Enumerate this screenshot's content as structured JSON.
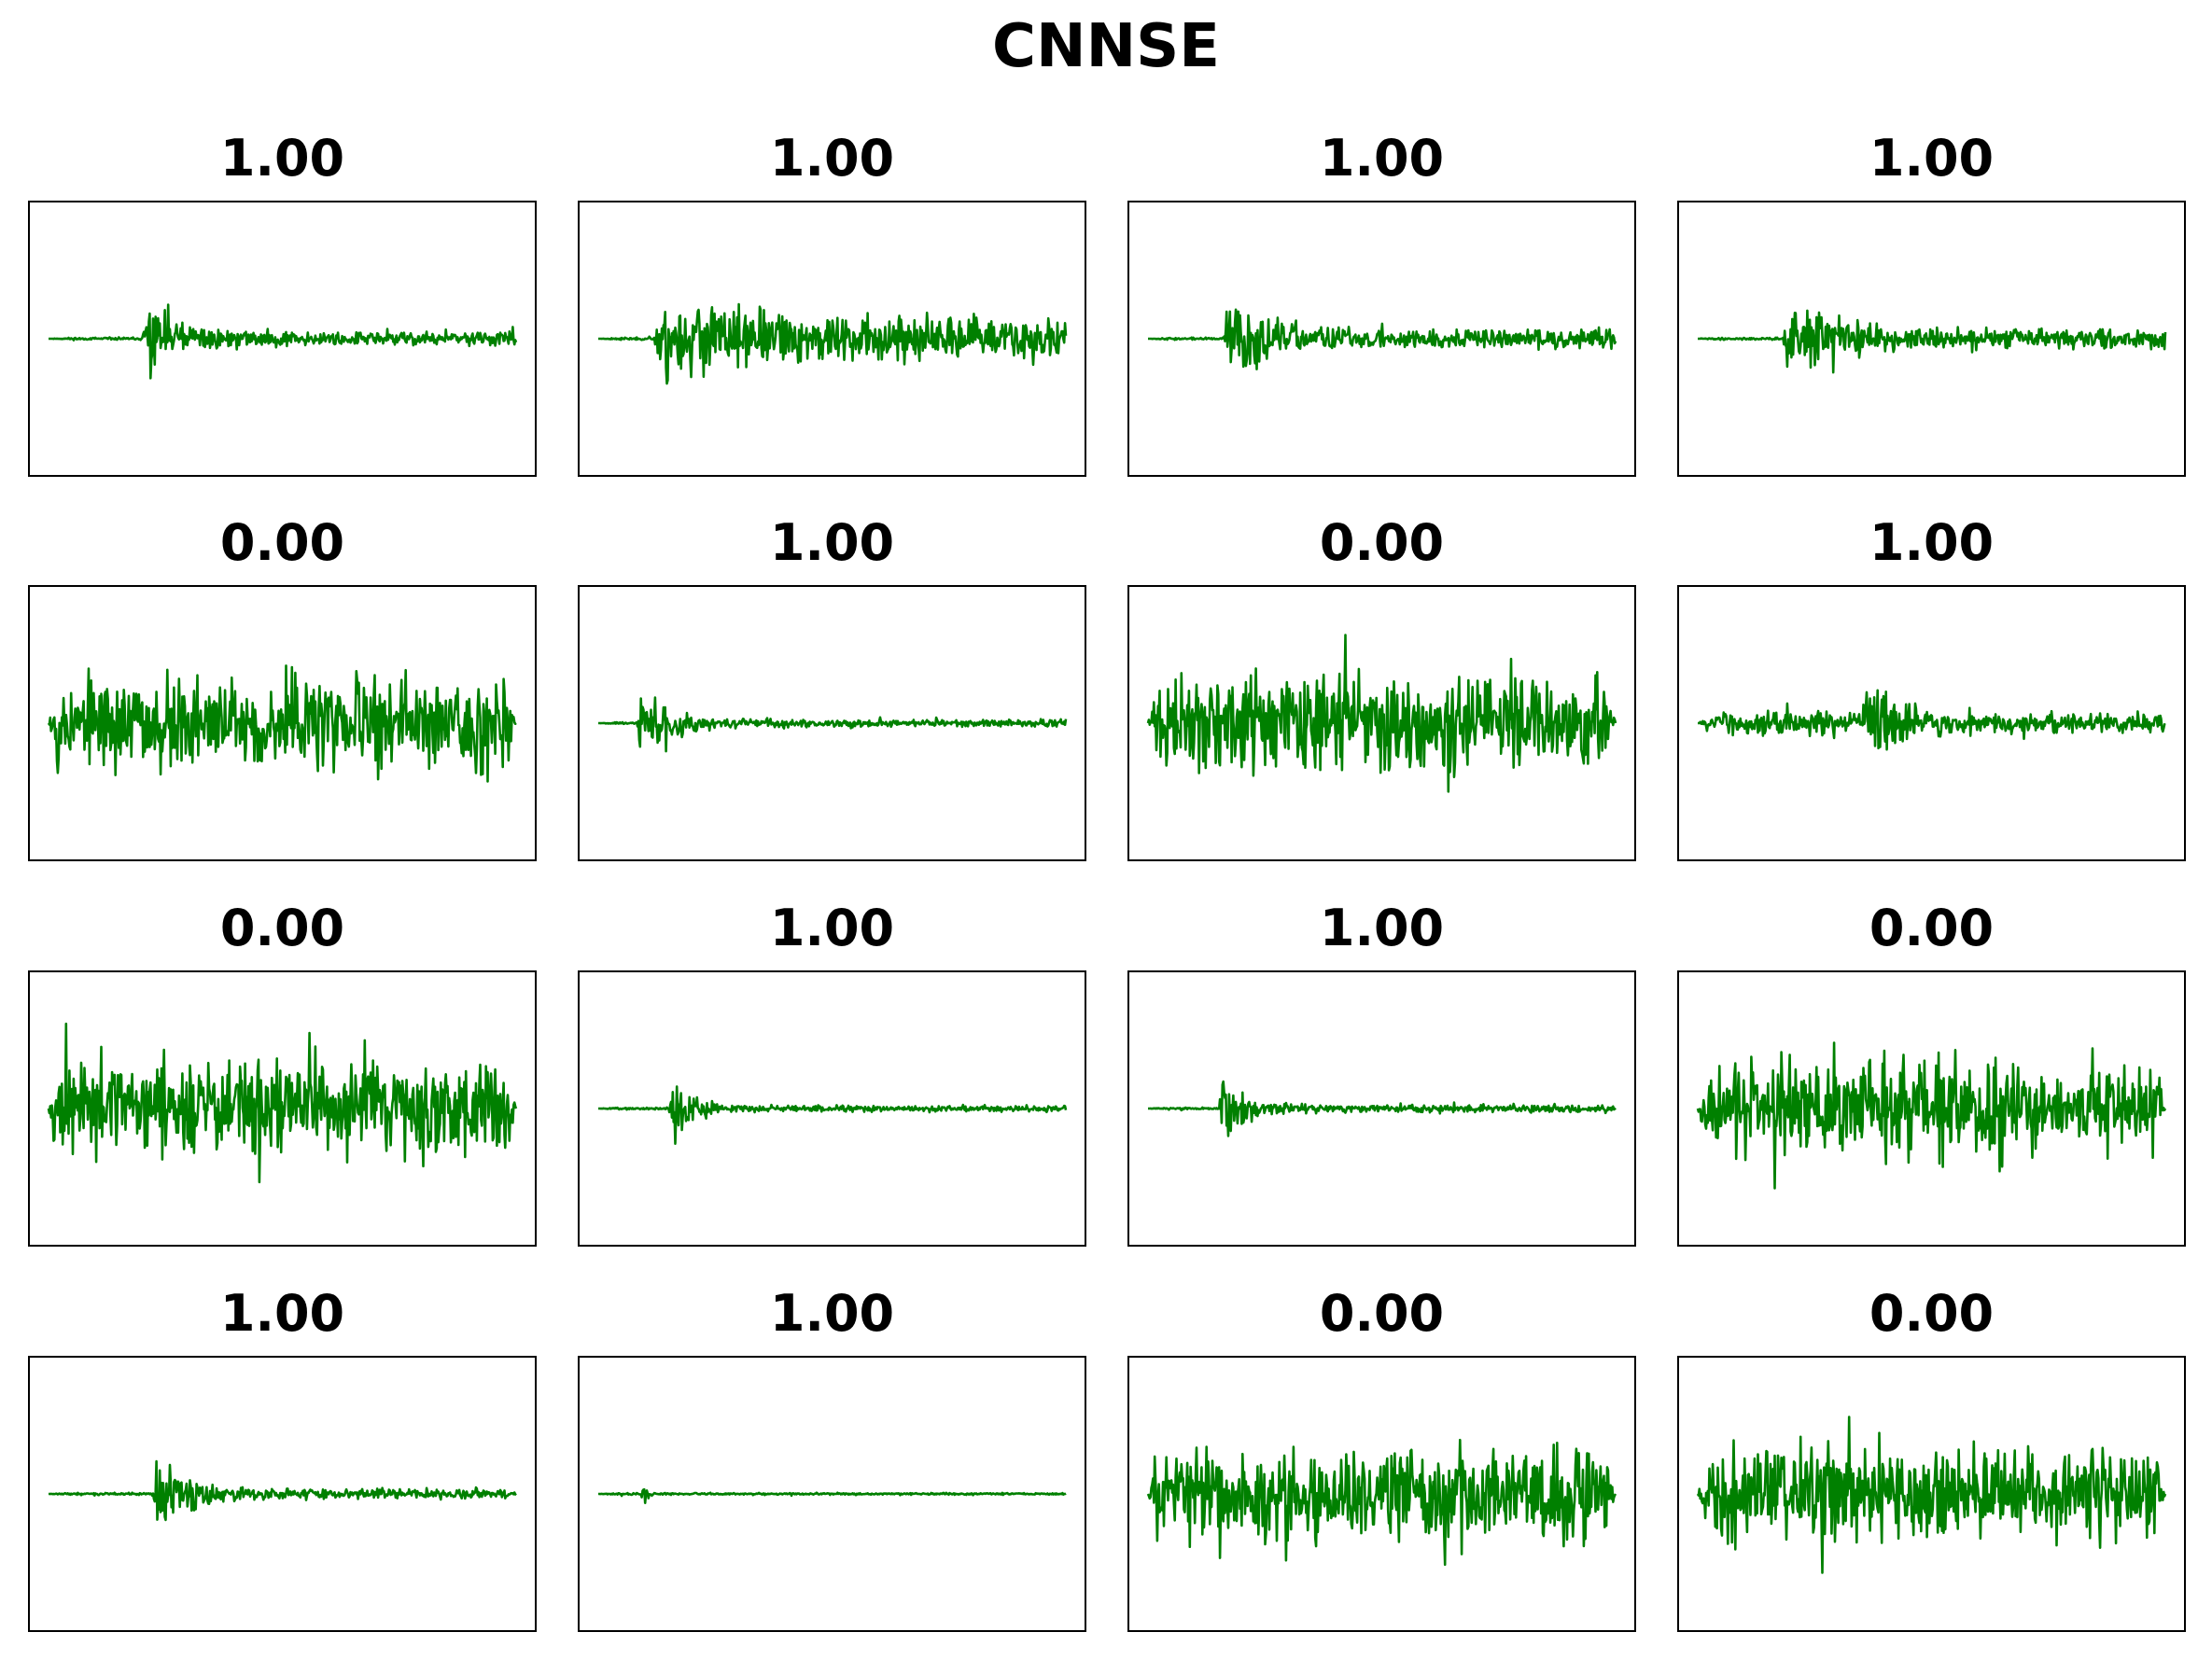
{
  "figure": {
    "title": "CNNSE",
    "line_color": "#008000"
  },
  "chart_data": [
    {
      "type": "line",
      "title": "1.00",
      "label": 1,
      "waveform": "event",
      "onset": 0.2,
      "peak_amp": 0.95,
      "tail_amp": 0.07,
      "decay": 2.5,
      "seed": 11
    },
    {
      "type": "line",
      "title": "1.00",
      "label": 1,
      "waveform": "event",
      "onset": 0.12,
      "peak_amp": 0.95,
      "tail_amp": 0.22,
      "decay": 1.2,
      "seed": 23
    },
    {
      "type": "line",
      "title": "1.00",
      "label": 1,
      "waveform": "event",
      "onset": 0.16,
      "peak_amp": 0.95,
      "tail_amp": 0.1,
      "decay": 2.2,
      "seed": 37
    },
    {
      "type": "line",
      "title": "1.00",
      "label": 1,
      "waveform": "event",
      "onset": 0.18,
      "peak_amp": 0.95,
      "tail_amp": 0.1,
      "decay": 2.0,
      "seed": 41
    },
    {
      "type": "line",
      "title": "0.00",
      "label": 0,
      "waveform": "noise",
      "peak_amp": 0.9,
      "seed": 53
    },
    {
      "type": "line",
      "title": "1.00",
      "label": 1,
      "waveform": "event",
      "onset": 0.08,
      "peak_amp": 0.95,
      "tail_amp": 0.04,
      "decay": 3.0,
      "seed": 67
    },
    {
      "type": "line",
      "title": "0.00",
      "label": 0,
      "waveform": "noise",
      "peak_amp": 0.9,
      "seed": 71
    },
    {
      "type": "line",
      "title": "1.00",
      "label": 1,
      "waveform": "event",
      "onset": 0.35,
      "peak_amp": 0.95,
      "tail_amp": 0.1,
      "decay": 2.5,
      "pre_noise": 0.12,
      "seed": 83
    },
    {
      "type": "line",
      "title": "0.00",
      "label": 0,
      "waveform": "noise",
      "peak_amp": 0.9,
      "seed": 97
    },
    {
      "type": "line",
      "title": "1.00",
      "label": 1,
      "waveform": "event",
      "onset": 0.15,
      "peak_amp": 0.95,
      "tail_amp": 0.03,
      "decay": 4.5,
      "seed": 101
    },
    {
      "type": "line",
      "title": "1.00",
      "label": 1,
      "waveform": "event",
      "onset": 0.15,
      "peak_amp": 0.95,
      "tail_amp": 0.04,
      "decay": 4.0,
      "seed": 113
    },
    {
      "type": "line",
      "title": "0.00",
      "label": 0,
      "waveform": "noise",
      "peak_amp": 0.9,
      "seed": 127
    },
    {
      "type": "line",
      "title": "1.00",
      "label": 1,
      "waveform": "event",
      "onset": 0.22,
      "peak_amp": 0.95,
      "tail_amp": 0.05,
      "decay": 2.8,
      "seed": 131
    },
    {
      "type": "line",
      "title": "1.00",
      "label": 1,
      "waveform": "event",
      "onset": 0.09,
      "peak_amp": 0.95,
      "tail_amp": 0.01,
      "decay": 25,
      "seed": 149
    },
    {
      "type": "line",
      "title": "0.00",
      "label": 0,
      "waveform": "noise",
      "peak_amp": 0.85,
      "seed": 151
    },
    {
      "type": "line",
      "title": "0.00",
      "label": 0,
      "waveform": "noise",
      "peak_amp": 0.9,
      "seed": 163
    }
  ]
}
